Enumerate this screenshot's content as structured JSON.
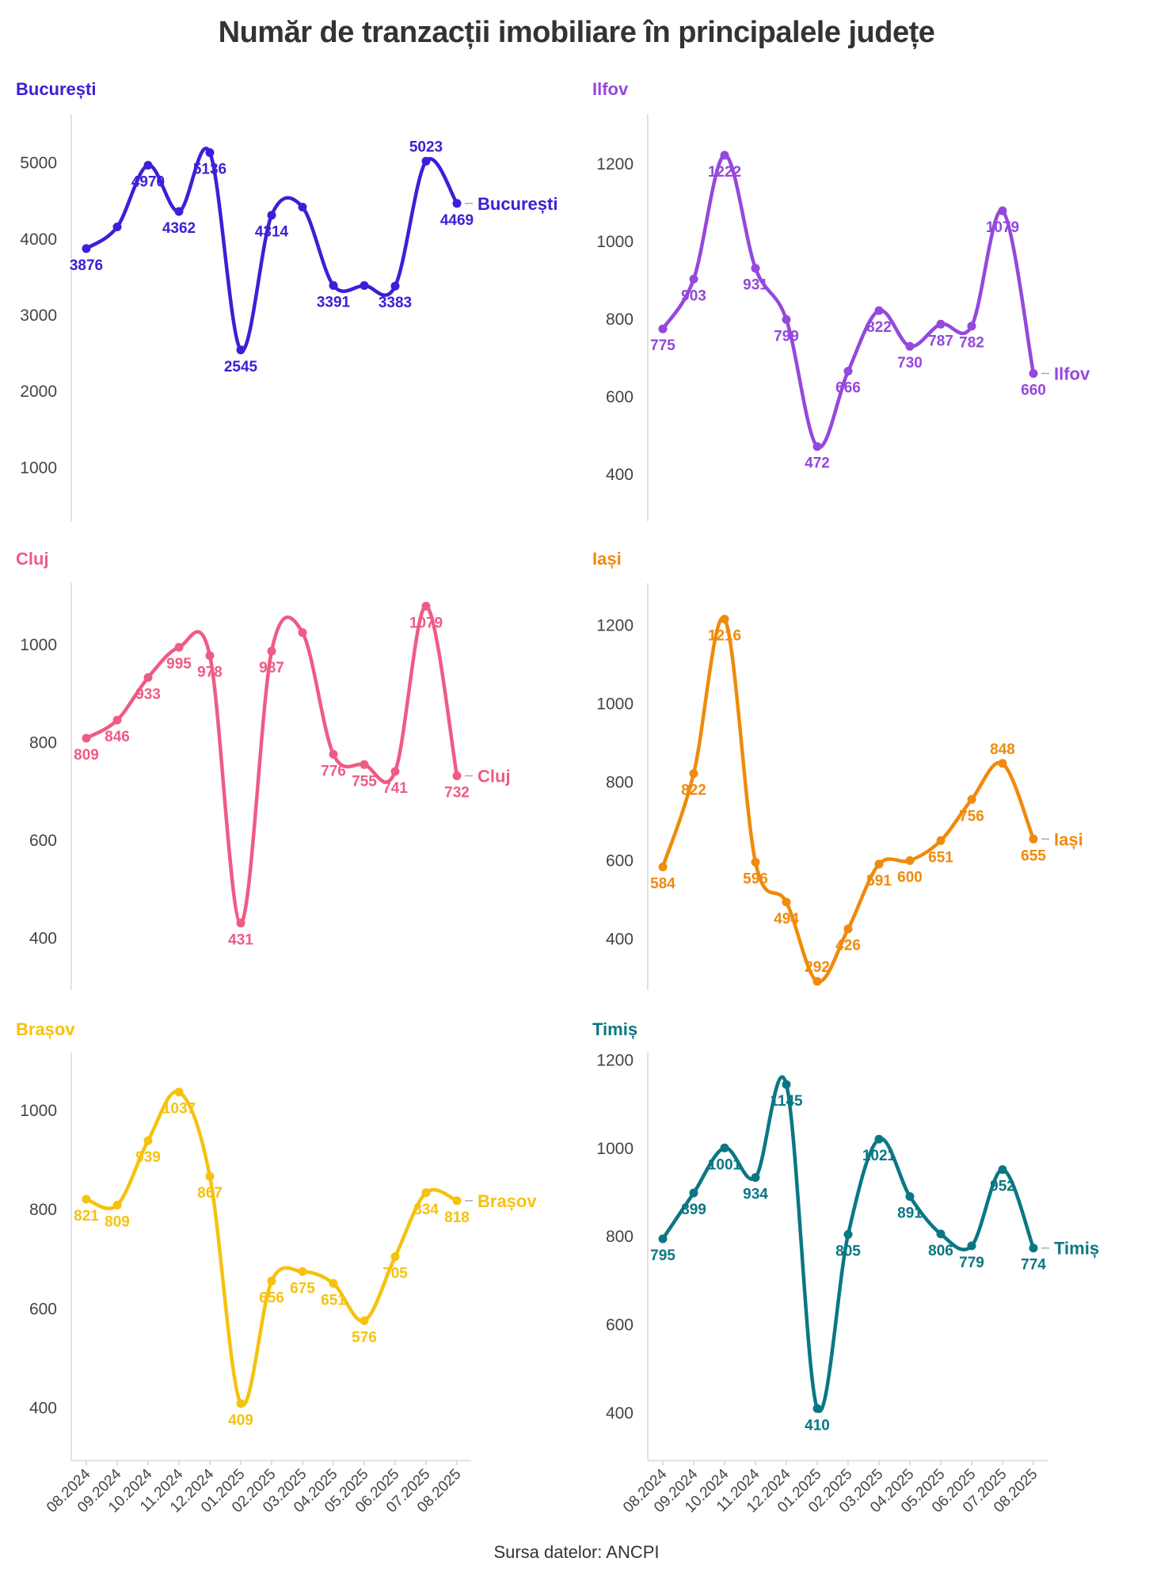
{
  "title": "Număr de tranzacții imobiliare în principalele județe",
  "source": "Sursa datelor: ANCPI",
  "chart_data": [
    {
      "type": "line",
      "name": "București",
      "color": "#3a20d6",
      "categories": [
        "08.2024",
        "09.2024",
        "10.2024",
        "11.2024",
        "12.2024",
        "01.2025",
        "02.2025",
        "03.2025",
        "04.2025",
        "05.2025",
        "06.2025",
        "07.2025",
        "08.2025"
      ],
      "values": [
        3876,
        4160,
        4970,
        4362,
        5136,
        2545,
        4314,
        4420,
        3391,
        3390,
        3383,
        5023,
        4469
      ],
      "labels": [
        "3876",
        "",
        "4970",
        "4362",
        "5136",
        "2545",
        "4314",
        "",
        "3391",
        "",
        "3383",
        "5023",
        "4469"
      ],
      "yticks": [
        1000,
        2000,
        3000,
        4000,
        5000
      ],
      "ylim": [
        400,
        5600
      ],
      "end_label": "București"
    },
    {
      "type": "line",
      "name": "Ilfov",
      "color": "#9448dc",
      "categories": [
        "08.2024",
        "09.2024",
        "10.2024",
        "11.2024",
        "12.2024",
        "01.2025",
        "02.2025",
        "03.2025",
        "04.2025",
        "05.2025",
        "06.2025",
        "07.2025",
        "08.2025"
      ],
      "values": [
        775,
        903,
        1222,
        931,
        799,
        472,
        666,
        822,
        730,
        787,
        782,
        1079,
        660
      ],
      "labels": [
        "775",
        "903",
        "1222",
        "931",
        "799",
        "472",
        "666",
        "822",
        "730",
        "787",
        "782",
        "1079",
        "660"
      ],
      "yticks": [
        400,
        600,
        800,
        1000,
        1200
      ],
      "ylim": [
        300,
        1320
      ],
      "end_label": "Ilfov"
    },
    {
      "type": "line",
      "name": "Cluj",
      "color": "#ef5b84",
      "categories": [
        "08.2024",
        "09.2024",
        "10.2024",
        "11.2024",
        "12.2024",
        "01.2025",
        "02.2025",
        "03.2025",
        "04.2025",
        "05.2025",
        "06.2025",
        "07.2025",
        "08.2025"
      ],
      "values": [
        809,
        846,
        933,
        995,
        978,
        431,
        987,
        1025,
        776,
        755,
        741,
        1079,
        732
      ],
      "labels": [
        "809",
        "846",
        "933",
        "995",
        "978",
        "431",
        "987",
        "",
        "776",
        "755",
        "741",
        "1079",
        "732"
      ],
      "yticks": [
        400,
        600,
        800,
        1000
      ],
      "ylim": [
        310,
        1120
      ],
      "end_label": "Cluj"
    },
    {
      "type": "line",
      "name": "Iași",
      "color": "#f08a0b",
      "categories": [
        "08.2024",
        "09.2024",
        "10.2024",
        "11.2024",
        "12.2024",
        "01.2025",
        "02.2025",
        "03.2025",
        "04.2025",
        "05.2025",
        "06.2025",
        "07.2025",
        "08.2025"
      ],
      "values": [
        584,
        822,
        1216,
        596,
        494,
        292,
        426,
        591,
        600,
        651,
        756,
        848,
        655
      ],
      "labels": [
        "584",
        "822",
        "1216",
        "596",
        "494",
        "292",
        "426",
        "591",
        "600",
        "651",
        "756",
        "848",
        "655"
      ],
      "yticks": [
        400,
        600,
        800,
        1000,
        1200
      ],
      "ylim": [
        290,
        1300
      ],
      "end_label": "Iași"
    },
    {
      "type": "line",
      "name": "Brașov",
      "color": "#f6c20d",
      "categories": [
        "08.2024",
        "09.2024",
        "10.2024",
        "11.2024",
        "12.2024",
        "01.2025",
        "02.2025",
        "03.2025",
        "04.2025",
        "05.2025",
        "06.2025",
        "07.2025",
        "08.2025"
      ],
      "values": [
        821,
        809,
        939,
        1037,
        867,
        409,
        656,
        675,
        651,
        576,
        705,
        834,
        818
      ],
      "labels": [
        "821",
        "809",
        "939",
        "1037",
        "867",
        "409",
        "656",
        "675",
        "651",
        "576",
        "705",
        "834",
        "818"
      ],
      "yticks": [
        400,
        600,
        800,
        1000
      ],
      "ylim": [
        310,
        1110
      ],
      "end_label": "Brașov"
    },
    {
      "type": "line",
      "name": "Timiș",
      "color": "#0a7784",
      "categories": [
        "08.2024",
        "09.2024",
        "10.2024",
        "11.2024",
        "12.2024",
        "01.2025",
        "02.2025",
        "03.2025",
        "04.2025",
        "05.2025",
        "06.2025",
        "07.2025",
        "08.2025"
      ],
      "values": [
        795,
        899,
        1001,
        934,
        1145,
        410,
        805,
        1021,
        891,
        806,
        779,
        952,
        774
      ],
      "labels": [
        "795",
        "899",
        "1001",
        "934",
        "1145",
        "410",
        "805",
        "1021",
        "891",
        "806",
        "779",
        "952",
        "774"
      ],
      "yticks": [
        400,
        600,
        800,
        1000,
        1200
      ],
      "ylim": [
        310,
        1210
      ],
      "end_label": "Timiș"
    }
  ]
}
